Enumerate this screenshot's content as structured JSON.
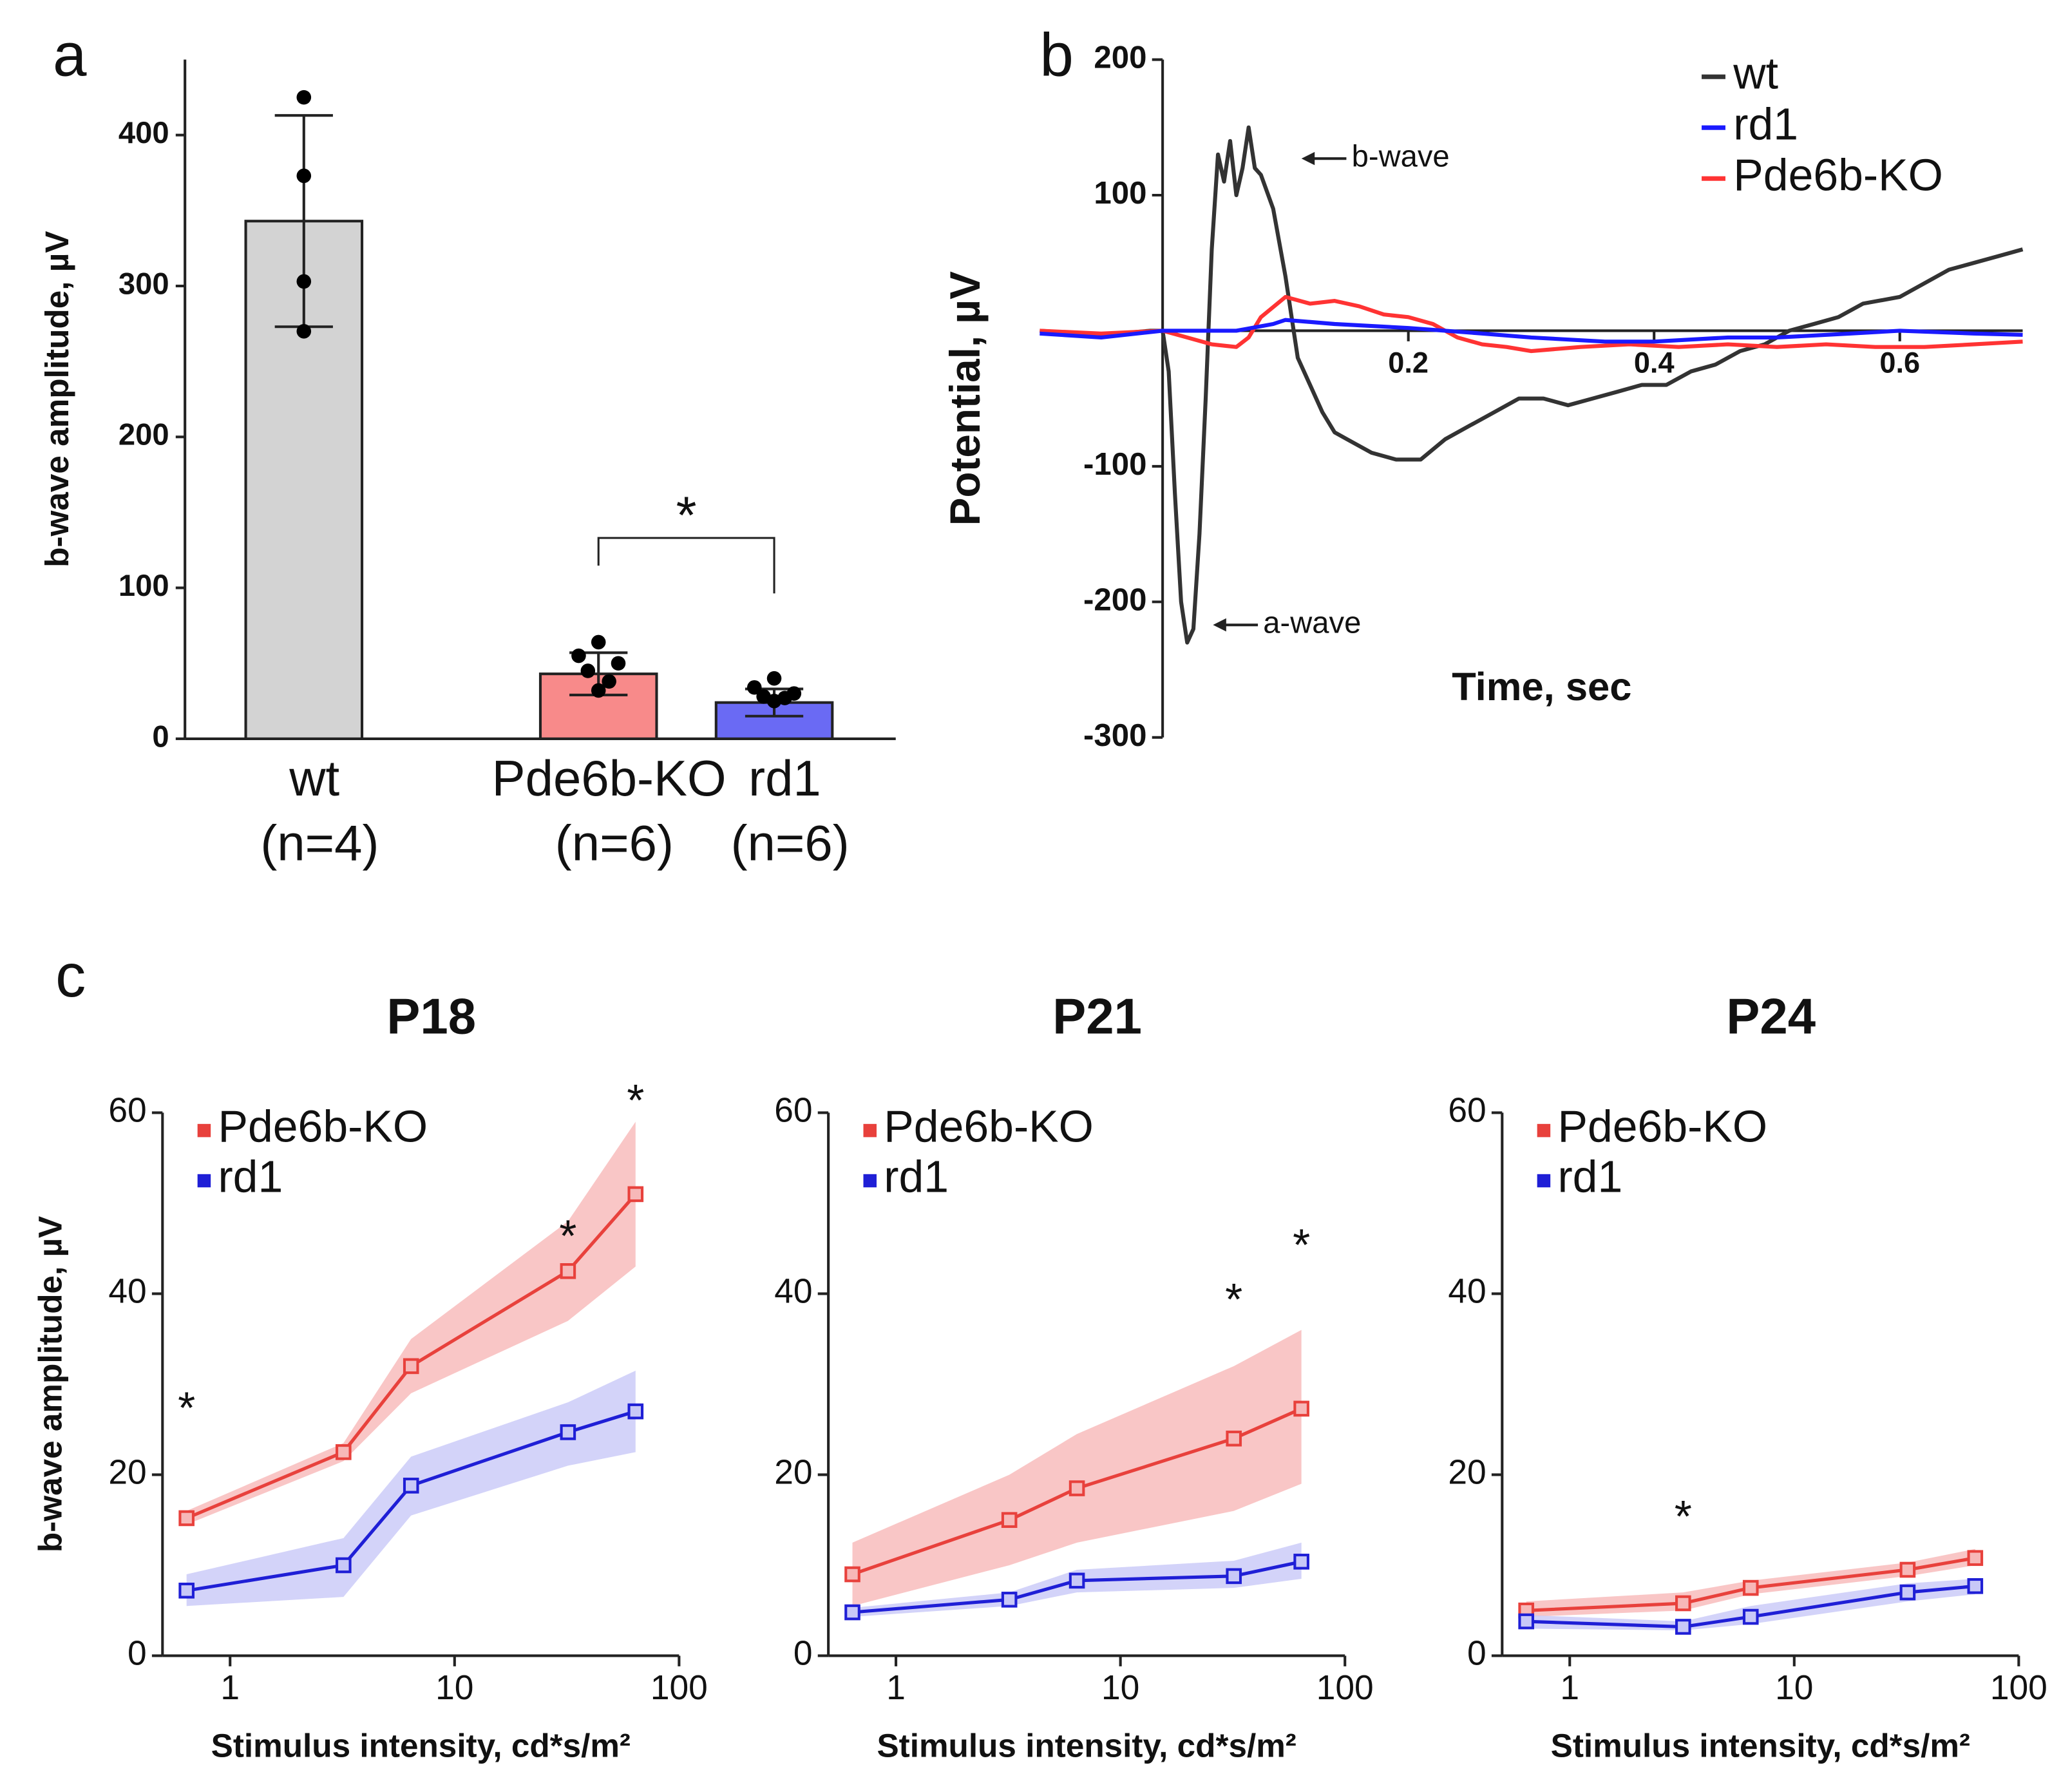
{
  "chart_data": [
    {
      "type": "bar",
      "panel_label": "a",
      "ylabel": "b-wave amplitude, µV",
      "categories": [
        "wt",
        "Pde6b-KO",
        "rd1"
      ],
      "group_sizes": [
        "(n=4)",
        "(n=6)",
        "(n=6)"
      ],
      "values": [
        343,
        43,
        24
      ],
      "errors": [
        70,
        14,
        9
      ],
      "colors": [
        "#d3d3d3",
        "#f88a8a",
        "#6a6af4"
      ],
      "points": [
        [
          425,
          373,
          303,
          270
        ],
        [
          64,
          55,
          50,
          45,
          38,
          32
        ],
        [
          40,
          34,
          30,
          28,
          27,
          25
        ]
      ],
      "ylim": [
        0,
        450
      ],
      "yticks": [
        0,
        100,
        200,
        300,
        400
      ],
      "annotations": [
        {
          "text": "*",
          "between": [
            1,
            2
          ]
        }
      ]
    },
    {
      "type": "line",
      "panel_label": "b",
      "ylabel": "Potential, µV",
      "xlabel": "Time, sec",
      "xlim": [
        -0.1,
        0.7
      ],
      "xticks": [
        0.2,
        0.4,
        0.6
      ],
      "ylim": [
        -300,
        200
      ],
      "yticks": [
        -300,
        -200,
        -100,
        100,
        200
      ],
      "legend": "upper right",
      "series": [
        {
          "name": "wt",
          "color": "#333333",
          "x": [
            -0.1,
            -0.05,
            -0.01,
            0,
            0.005,
            0.01,
            0.015,
            0.02,
            0.025,
            0.03,
            0.035,
            0.04,
            0.045,
            0.05,
            0.055,
            0.06,
            0.065,
            0.07,
            0.075,
            0.08,
            0.09,
            0.1,
            0.11,
            0.12,
            0.13,
            0.14,
            0.15,
            0.17,
            0.19,
            0.21,
            0.23,
            0.25,
            0.27,
            0.29,
            0.31,
            0.33,
            0.35,
            0.37,
            0.39,
            0.41,
            0.43,
            0.45,
            0.47,
            0.49,
            0.51,
            0.53,
            0.55,
            0.57,
            0.6,
            0.62,
            0.64,
            0.66,
            0.68,
            0.7
          ],
          "values": [
            0,
            -3,
            0,
            0,
            -30,
            -120,
            -200,
            -230,
            -220,
            -150,
            -50,
            60,
            130,
            110,
            140,
            100,
            120,
            150,
            120,
            115,
            90,
            40,
            -20,
            -40,
            -60,
            -75,
            -80,
            -90,
            -95,
            -95,
            -80,
            -70,
            -60,
            -50,
            -50,
            -55,
            -50,
            -45,
            -40,
            -40,
            -30,
            -25,
            -15,
            -10,
            0,
            5,
            10,
            20,
            25,
            35,
            45,
            50,
            55,
            60
          ]
        },
        {
          "name": "rd1",
          "color": "#1a1aff",
          "x": [
            -0.1,
            -0.05,
            0,
            0.03,
            0.06,
            0.09,
            0.1,
            0.14,
            0.2,
            0.26,
            0.3,
            0.36,
            0.4,
            0.46,
            0.5,
            0.56,
            0.6,
            0.66,
            0.7
          ],
          "values": [
            -2,
            -5,
            0,
            0,
            0,
            5,
            8,
            5,
            2,
            -2,
            -5,
            -8,
            -8,
            -5,
            -5,
            -2,
            0,
            -2,
            -3
          ]
        },
        {
          "name": "Pde6b-KO",
          "color": "#ff3333",
          "x": [
            -0.1,
            -0.05,
            0,
            0.02,
            0.04,
            0.06,
            0.07,
            0.08,
            0.1,
            0.12,
            0.14,
            0.16,
            0.18,
            0.2,
            0.22,
            0.24,
            0.26,
            0.28,
            0.3,
            0.34,
            0.38,
            0.42,
            0.46,
            0.5,
            0.54,
            0.58,
            0.62,
            0.66,
            0.7
          ],
          "values": [
            0,
            -2,
            0,
            -5,
            -10,
            -12,
            -5,
            10,
            25,
            20,
            22,
            18,
            12,
            10,
            5,
            -5,
            -10,
            -12,
            -15,
            -12,
            -10,
            -12,
            -10,
            -12,
            -10,
            -12,
            -12,
            -10,
            -8
          ]
        }
      ],
      "annotations": [
        {
          "text": "b-wave",
          "x": 0.113,
          "y": 127
        },
        {
          "text": "a-wave",
          "x": 0.041,
          "y": -217
        }
      ]
    },
    {
      "type": "line",
      "panel_label": "c",
      "title": "P18",
      "ylabel": "b-wave amplitude, µV",
      "xlabel": "Stimulus intensity, cd*s/m²",
      "xscale": "log",
      "xlim": [
        0.5,
        100
      ],
      "xticks": [
        1,
        10,
        100
      ],
      "ylim": [
        0,
        60
      ],
      "yticks": [
        0,
        20,
        40,
        60
      ],
      "legend": "upper left",
      "marker": "square",
      "x": [
        0.64,
        3.2,
        6.4,
        32,
        64
      ],
      "series": [
        {
          "name": "Pde6b-KO",
          "color": "#e8413c",
          "band_color": "#f7b8b8",
          "values": [
            15.2,
            22.5,
            32,
            42.5,
            51
          ],
          "lower": [
            14.5,
            21.5,
            29,
            37,
            43
          ],
          "upper": [
            16,
            23.5,
            35,
            48,
            59
          ]
        },
        {
          "name": "rd1",
          "color": "#1f1fd6",
          "band_color": "#c8c8f7",
          "values": [
            7.2,
            10,
            18.8,
            24.7,
            27
          ],
          "lower": [
            5.5,
            6.5,
            15.5,
            21,
            22.5
          ],
          "upper": [
            9,
            13,
            22,
            28,
            31.5
          ]
        }
      ],
      "annotations": [
        {
          "text": "*",
          "x": 0.64,
          "y": 27
        },
        {
          "text": "*",
          "x": 32,
          "y": 46
        },
        {
          "text": "*",
          "x": 64,
          "y": 61
        }
      ]
    },
    {
      "type": "line",
      "title": "P21",
      "xlabel": "Stimulus intensity, cd*s/m²",
      "xscale": "log",
      "xlim": [
        0.5,
        100
      ],
      "xticks": [
        1,
        10,
        100
      ],
      "ylim": [
        0,
        60
      ],
      "yticks": [
        0,
        20,
        40,
        60
      ],
      "legend": "upper left",
      "marker": "square",
      "x": [
        0.64,
        3.2,
        6.4,
        32,
        64
      ],
      "series": [
        {
          "name": "Pde6b-KO",
          "color": "#e8413c",
          "band_color": "#f7b8b8",
          "values": [
            9,
            15,
            18.5,
            24,
            27.3
          ],
          "lower": [
            5.5,
            10,
            12.5,
            16,
            19
          ],
          "upper": [
            12.5,
            20,
            24.5,
            32,
            36
          ]
        },
        {
          "name": "rd1",
          "color": "#1f1fd6",
          "band_color": "#c8c8f7",
          "values": [
            4.8,
            6.2,
            8.3,
            8.8,
            10.4
          ],
          "lower": [
            4.3,
            5.5,
            7,
            7.5,
            8.5
          ],
          "upper": [
            5.3,
            7,
            9.5,
            10.5,
            12.5
          ]
        }
      ],
      "annotations": [
        {
          "text": "*",
          "x": 32,
          "y": 39
        },
        {
          "text": "*",
          "x": 64,
          "y": 45
        }
      ]
    },
    {
      "type": "line",
      "title": "P24",
      "xlabel": "Stimulus intensity, cd*s/m²",
      "xscale": "log",
      "xlim": [
        0.5,
        100
      ],
      "xticks": [
        1,
        10,
        100
      ],
      "ylim": [
        0,
        60
      ],
      "yticks": [
        0,
        20,
        40,
        60
      ],
      "legend": "upper left",
      "marker": "square",
      "x": [
        0.64,
        3.2,
        6.4,
        32,
        64
      ],
      "series": [
        {
          "name": "Pde6b-KO",
          "color": "#e8413c",
          "band_color": "#f7b8b8",
          "values": [
            5,
            5.8,
            7.5,
            9.5,
            10.8
          ],
          "lower": [
            4.3,
            5,
            6.8,
            8.8,
            10
          ],
          "upper": [
            6,
            7,
            8.3,
            10.3,
            11.8
          ]
        },
        {
          "name": "rd1",
          "color": "#1f1fd6",
          "band_color": "#c8c8f7",
          "values": [
            3.8,
            3.2,
            4.3,
            7,
            7.7
          ],
          "lower": [
            3,
            2.8,
            3.5,
            6,
            6.8
          ],
          "upper": [
            4.5,
            3.8,
            5.5,
            8,
            8.5
          ]
        }
      ],
      "annotations": [
        {
          "text": "*",
          "x": 3.2,
          "y": 15
        }
      ]
    }
  ]
}
